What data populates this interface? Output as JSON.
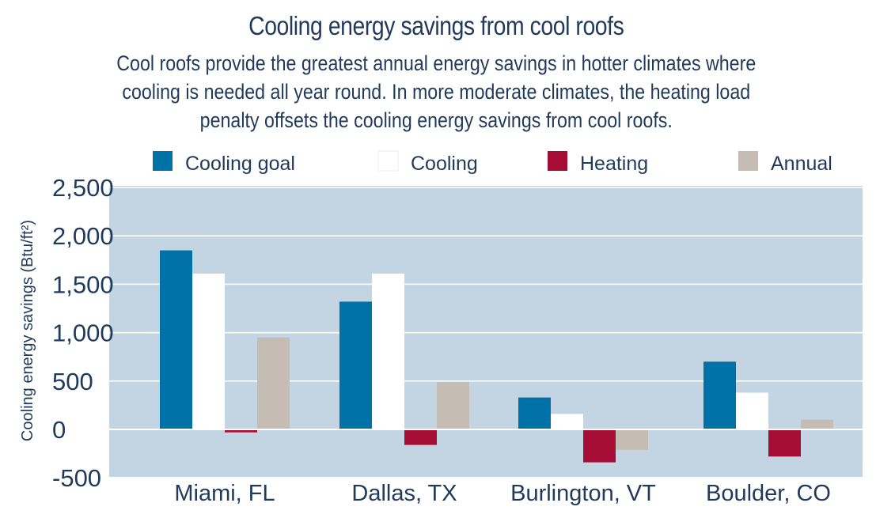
{
  "chart_data": {
    "type": "bar",
    "title": "Cooling energy savings from cool roofs",
    "subtitle_lines": [
      "Cool roofs provide the greatest annual energy savings in hotter climates where",
      "cooling is needed all year round. In more moderate climates, the heating load",
      "penalty offsets the cooling energy savings from cool roofs."
    ],
    "ylabel": "Cooling energy savings (Btu/ft²)",
    "xlabel": "",
    "ylim": [
      -500,
      2500
    ],
    "yticks": [
      2500,
      2000,
      1500,
      1000,
      500,
      0,
      -500
    ],
    "ytick_labels": [
      "2,500",
      "2,000",
      "1,500",
      "1,000",
      "500",
      "0",
      "-500"
    ],
    "grid": true,
    "legend_position": "top",
    "categories": [
      "Miami, FL",
      "Dallas, TX",
      "Burlington, VT",
      "Boulder, CO"
    ],
    "series": [
      {
        "name": "Cooling goal",
        "color": "#0072a8",
        "values": [
          1850,
          1320,
          330,
          700
        ]
      },
      {
        "name": "Cooling",
        "color": "#ffffff",
        "values": [
          1610,
          1610,
          160,
          380
        ]
      },
      {
        "name": "Heating",
        "color": "#a50d35",
        "values": [
          -30,
          -160,
          -340,
          -280
        ]
      },
      {
        "name": "Annual",
        "color": "#c5bdb3",
        "values": [
          950,
          490,
          -210,
          100
        ]
      }
    ],
    "plot_background": "#c3d4e2",
    "grid_color": "#ffffff"
  }
}
